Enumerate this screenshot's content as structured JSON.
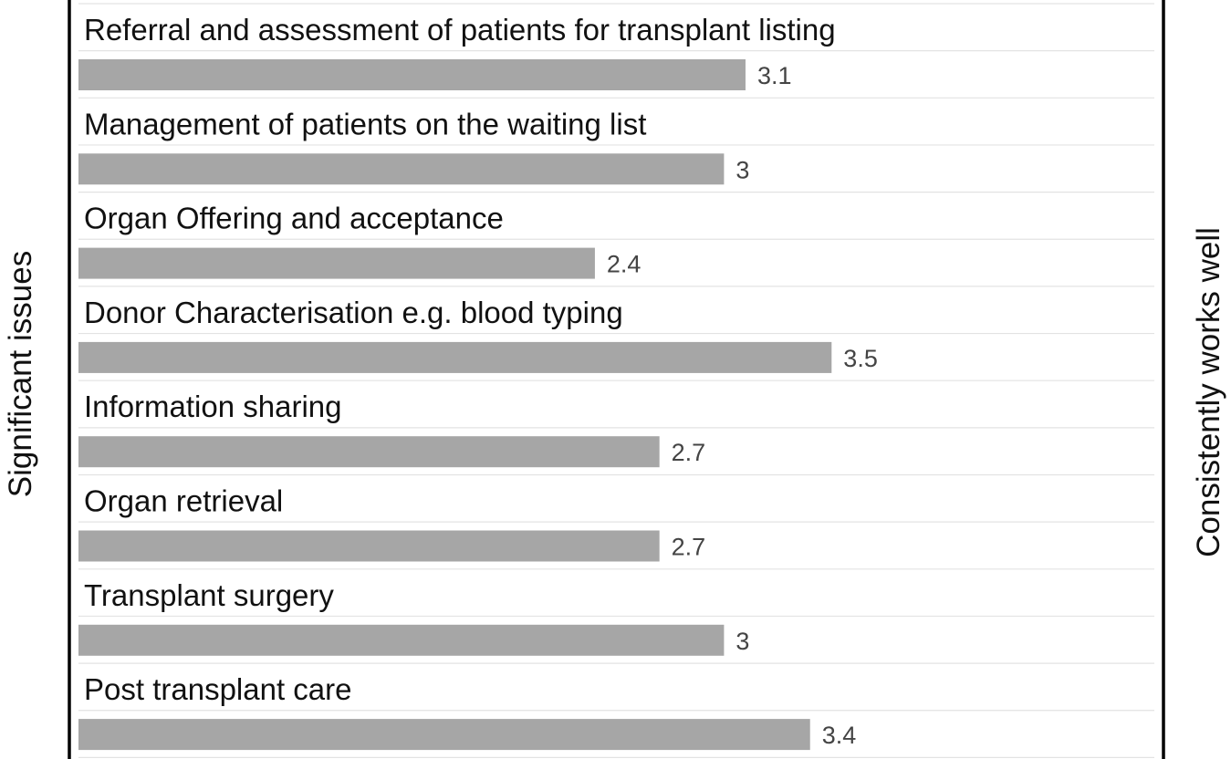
{
  "chart_data": {
    "type": "bar",
    "orientation": "horizontal",
    "left_label": "Significant issues",
    "right_label": "Consistently works well",
    "categories": [
      "Referral and assessment of patients for transplant listing",
      "Management of patients on the waiting list",
      "Organ Offering and acceptance",
      "Donor Characterisation e.g. blood typing",
      "Information sharing",
      "Organ retrieval",
      "Transplant surgery",
      "Post transplant care"
    ],
    "values": [
      3.1,
      3,
      2.4,
      3.5,
      2.7,
      2.7,
      3,
      3.4
    ],
    "value_labels": [
      "3.1",
      "3",
      "2.4",
      "3.5",
      "2.7",
      "2.7",
      "3",
      "3.4"
    ],
    "xlim": [
      0,
      5
    ],
    "grid": true,
    "colors": {
      "bar": "#a6a6a6",
      "grid": "#e3e3e3",
      "axis": "#000000"
    }
  }
}
